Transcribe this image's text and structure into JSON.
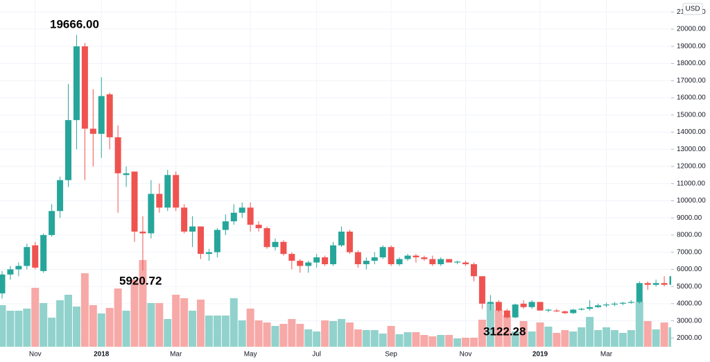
{
  "chart_data": {
    "type": "candlestick",
    "currency": "USD",
    "categories": [
      null,
      null,
      null,
      null,
      "Nov",
      null,
      null,
      null,
      null,
      null,
      null,
      null,
      "2018",
      null,
      null,
      null,
      null,
      null,
      null,
      null,
      null,
      "Mar",
      null,
      null,
      null,
      null,
      null,
      null,
      null,
      null,
      "May",
      null,
      null,
      null,
      null,
      null,
      null,
      null,
      "Jul",
      null,
      null,
      null,
      null,
      null,
      null,
      null,
      null,
      "Sep",
      null,
      null,
      null,
      null,
      null,
      null,
      null,
      null,
      "Nov",
      null,
      null,
      null,
      null,
      null,
      null,
      null,
      null,
      "2019",
      null,
      null,
      null,
      null,
      null,
      null,
      null,
      "Mar",
      null,
      null,
      null,
      null,
      null,
      null,
      null,
      null
    ],
    "open": [
      4600,
      5700,
      6000,
      6200,
      7400,
      5900,
      8000,
      9400,
      11200,
      14700,
      19000,
      14200,
      13900,
      16200,
      13700,
      11500,
      11700,
      8200,
      8100,
      10400,
      9600,
      11500,
      9600,
      8200,
      8500,
      6900,
      7000,
      8300,
      8800,
      9300,
      9600,
      8600,
      8400,
      7300,
      7600,
      6900,
      6500,
      6200,
      6400,
      6700,
      6300,
      7400,
      8200,
      7000,
      6300,
      6500,
      6700,
      7300,
      6300,
      6600,
      6800,
      6700,
      6600,
      6300,
      6600,
      6400,
      6400,
      6300,
      5600,
      4000,
      4100,
      3600,
      3200,
      4000,
      3800,
      4100,
      3600,
      3600,
      3550,
      3450,
      3650,
      3700,
      3800,
      3900,
      3950,
      4000,
      4050,
      4100,
      5200,
      5100,
      5200,
      5100
    ],
    "high": [
      5900,
      6200,
      6400,
      7500,
      7600,
      8100,
      9800,
      11400,
      16800,
      19666,
      19200,
      16500,
      17200,
      16300,
      14400,
      12000,
      11700,
      9100,
      11200,
      11000,
      11800,
      11700,
      9800,
      9100,
      8500,
      7200,
      8400,
      9200,
      9800,
      9900,
      9900,
      8800,
      8500,
      7800,
      7700,
      7000,
      6600,
      6500,
      6900,
      6800,
      7600,
      8500,
      8300,
      7100,
      6700,
      7000,
      7400,
      7400,
      6700,
      6900,
      6900,
      6800,
      6800,
      6700,
      6600,
      6500,
      6500,
      6400,
      5600,
      4500,
      4200,
      3700,
      4000,
      4200,
      4200,
      4100,
      3700,
      3700,
      3600,
      3700,
      3750,
      4200,
      4000,
      4050,
      4100,
      4100,
      4200,
      5300,
      5300,
      5400,
      5600,
      5700
    ],
    "low": [
      4300,
      5400,
      5600,
      6000,
      6000,
      5800,
      7900,
      9000,
      10800,
      13000,
      11200,
      12000,
      12500,
      13000,
      9300,
      10800,
      7600,
      5920.72,
      7800,
      9300,
      9400,
      9400,
      8100,
      7300,
      6600,
      6500,
      6700,
      8000,
      8600,
      9000,
      8200,
      8200,
      7200,
      7100,
      6800,
      6000,
      5800,
      5800,
      6100,
      6200,
      6200,
      7300,
      6900,
      6100,
      6000,
      6300,
      6600,
      6200,
      6200,
      6500,
      6400,
      6500,
      6200,
      6200,
      6400,
      6300,
      6200,
      5300,
      3700,
      3600,
      3500,
      3122.28,
      3150,
      3700,
      3700,
      3600,
      3500,
      3500,
      3400,
      3400,
      3600,
      3600,
      3750,
      3800,
      3850,
      3900,
      4000,
      4000,
      4800,
      5000,
      5000,
      5100
    ],
    "close": [
      5700,
      6000,
      6200,
      7300,
      6100,
      8000,
      9400,
      11200,
      14700,
      19000,
      14200,
      13900,
      16100,
      13700,
      11600,
      11600,
      8200,
      8100,
      10400,
      9600,
      11500,
      9600,
      8200,
      8500,
      6900,
      7000,
      8300,
      8800,
      9300,
      9600,
      8600,
      8400,
      7300,
      7600,
      6900,
      6500,
      6200,
      6400,
      6700,
      6300,
      7400,
      8200,
      7000,
      6300,
      6500,
      6700,
      7300,
      6300,
      6600,
      6800,
      6700,
      6600,
      6300,
      6600,
      6400,
      6450,
      6300,
      5600,
      4000,
      4100,
      3600,
      3200,
      3950,
      3800,
      4100,
      3600,
      3650,
      3550,
      3450,
      3650,
      3700,
      3800,
      3900,
      3950,
      4000,
      4050,
      4100,
      5200,
      5100,
      5200,
      5100,
      5600
    ],
    "volume": [
      60,
      52,
      52,
      55,
      85,
      63,
      42,
      67,
      75,
      58,
      106,
      60,
      48,
      56,
      84,
      52,
      97,
      125,
      63,
      63,
      40,
      75,
      70,
      52,
      68,
      45,
      45,
      45,
      70,
      38,
      55,
      38,
      35,
      30,
      33,
      40,
      33,
      25,
      22,
      38,
      37,
      40,
      35,
      25,
      24,
      24,
      19,
      30,
      18,
      21,
      21,
      17,
      15,
      17,
      17,
      12,
      13,
      13,
      39,
      63,
      53,
      45,
      22,
      37,
      22,
      35,
      29,
      20,
      24,
      22,
      28,
      43,
      24,
      28,
      24,
      20,
      24,
      65,
      37,
      25,
      35,
      28
    ],
    "volume_lim": [
      0,
      500
    ],
    "ylim": [
      600,
      21700
    ],
    "yticks": [
      {
        "value": 2000,
        "label": "2000.00"
      },
      {
        "value": 3000,
        "label": "3000.00"
      },
      {
        "value": 4000,
        "label": "4000.00"
      },
      {
        "value": 5000,
        "label": "5000.00"
      },
      {
        "value": 6000,
        "label": "6000.00"
      },
      {
        "value": 7000,
        "label": "7000.00"
      },
      {
        "value": 8000,
        "label": "8000.00"
      },
      {
        "value": 9000,
        "label": "9000.00"
      },
      {
        "value": 10000,
        "label": "10000.00"
      },
      {
        "value": 11000,
        "label": "11000.00"
      },
      {
        "value": 12000,
        "label": "12000.00"
      },
      {
        "value": 13000,
        "label": "13000.00"
      },
      {
        "value": 14000,
        "label": "14000.00"
      },
      {
        "value": 15000,
        "label": "15000.00"
      },
      {
        "value": 16000,
        "label": "16000.00"
      },
      {
        "value": 17000,
        "label": "17000.00"
      },
      {
        "value": 18000,
        "label": "18000.00"
      },
      {
        "value": 19000,
        "label": "19000.00"
      },
      {
        "value": 20000,
        "label": "20000.00"
      },
      {
        "value": 21000,
        "label": "21000.00"
      }
    ],
    "up_color": "#26a69a",
    "down_color": "#ef5350",
    "volume_up_color": "#92d2cc",
    "volume_down_color": "#f7a9a7",
    "grid": true,
    "annotations": [
      "19666.00",
      "5920.72",
      "3122.28"
    ]
  }
}
